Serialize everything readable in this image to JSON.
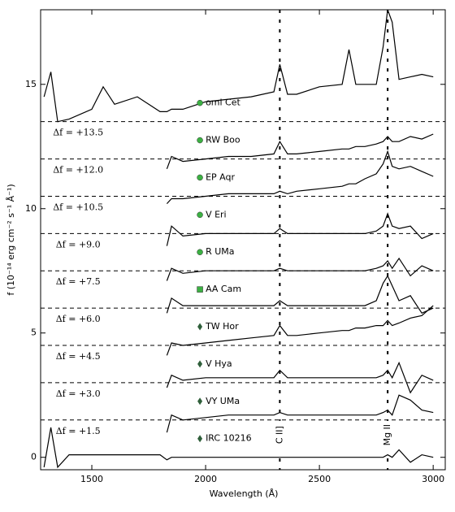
{
  "chart_data": {
    "type": "line",
    "xlabel": "Wavelength (Å)",
    "ylabel": "f (10⁻¹⁴ erg cm⁻² s⁻¹ Å⁻¹)",
    "xlim": [
      1275,
      3053
    ],
    "ylim": [
      -0.5,
      18.0
    ],
    "xticks": [
      1500,
      2000,
      2500,
      3000
    ],
    "yticks": [
      0,
      5,
      10,
      15
    ],
    "line_color": "#000000",
    "x": [
      1290,
      1320,
      1350,
      1400,
      1500,
      1550,
      1600,
      1700,
      1800,
      1830,
      1850,
      1900,
      2000,
      2100,
      2200,
      2300,
      2326,
      2360,
      2400,
      2500,
      2600,
      2630,
      2660,
      2700,
      2750,
      2780,
      2800,
      2820,
      2850,
      2900,
      2950,
      3000
    ],
    "annotations": [
      {
        "text": "C II]",
        "x": 2326
      },
      {
        "text": "Mg II",
        "x": 2800
      }
    ],
    "series": [
      {
        "name": "omi Cet",
        "marker": "circle",
        "color": "#3cb043",
        "offset": {
          "value": 13.5,
          "label": "Δf = +13.5"
        },
        "values": [
          14.5,
          15.5,
          13.5,
          13.6,
          14.0,
          14.9,
          14.2,
          14.5,
          13.9,
          13.9,
          14.0,
          14.0,
          14.3,
          14.4,
          14.5,
          14.7,
          15.8,
          14.6,
          14.6,
          14.9,
          15.0,
          16.4,
          15.0,
          15.0,
          15.0,
          16.5,
          18.0,
          17.5,
          15.2,
          15.3,
          15.4,
          15.3
        ]
      },
      {
        "name": "RW Boo",
        "marker": "circle",
        "color": "#3cb043",
        "offset": {
          "value": 12.0,
          "label": "Δf = +12.0"
        },
        "values": [
          null,
          null,
          null,
          null,
          null,
          null,
          null,
          null,
          null,
          11.6,
          12.1,
          11.9,
          12.0,
          12.1,
          12.1,
          12.2,
          12.7,
          12.2,
          12.2,
          12.3,
          12.4,
          12.4,
          12.5,
          12.5,
          12.6,
          12.7,
          12.9,
          12.7,
          12.7,
          12.9,
          12.8,
          13.0
        ]
      },
      {
        "name": "EP Aqr",
        "marker": "circle",
        "color": "#3cb043",
        "offset": {
          "value": 10.5,
          "label": "Δf = +10.5"
        },
        "values": [
          null,
          null,
          null,
          null,
          null,
          null,
          null,
          null,
          null,
          10.2,
          10.4,
          10.4,
          10.5,
          10.6,
          10.6,
          10.6,
          10.7,
          10.6,
          10.7,
          10.8,
          10.9,
          11.0,
          11.0,
          11.2,
          11.4,
          11.8,
          12.3,
          11.7,
          11.6,
          11.7,
          11.5,
          11.3
        ]
      },
      {
        "name": "V Eri",
        "marker": "circle",
        "color": "#3cb043",
        "offset": {
          "value": 9.0,
          "label": "Δf = +9.0"
        },
        "values": [
          null,
          null,
          null,
          null,
          null,
          null,
          null,
          null,
          null,
          8.5,
          9.3,
          8.9,
          9.0,
          9.0,
          9.0,
          9.0,
          9.2,
          9.0,
          9.0,
          9.0,
          9.0,
          9.0,
          9.0,
          9.0,
          9.1,
          9.3,
          9.8,
          9.3,
          9.2,
          9.3,
          8.8,
          9.0
        ]
      },
      {
        "name": "R UMa",
        "marker": "circle",
        "color": "#3cb043",
        "offset": {
          "value": 7.5,
          "label": "Δf = +7.5"
        },
        "values": [
          null,
          null,
          null,
          null,
          null,
          null,
          null,
          null,
          null,
          7.1,
          7.6,
          7.4,
          7.5,
          7.5,
          7.5,
          7.5,
          7.6,
          7.5,
          7.5,
          7.5,
          7.5,
          7.5,
          7.5,
          7.5,
          7.6,
          7.7,
          7.9,
          7.6,
          8.0,
          7.3,
          7.7,
          7.5
        ]
      },
      {
        "name": "AA Cam",
        "marker": "square",
        "color": "#3cb043",
        "offset": {
          "value": 6.0,
          "label": "Δf = +6.0"
        },
        "values": [
          null,
          null,
          null,
          null,
          null,
          null,
          null,
          null,
          null,
          5.8,
          6.4,
          6.1,
          6.1,
          6.1,
          6.1,
          6.1,
          6.3,
          6.1,
          6.1,
          6.1,
          6.1,
          6.1,
          6.1,
          6.1,
          6.3,
          7.0,
          7.3,
          6.9,
          6.3,
          6.5,
          5.8,
          6.0
        ]
      },
      {
        "name": "TW Hor",
        "marker": "diamond",
        "color": "#2f5f3a",
        "offset": {
          "value": 4.5,
          "label": "Δf = +4.5"
        },
        "values": [
          null,
          null,
          null,
          null,
          null,
          null,
          null,
          null,
          null,
          4.1,
          4.6,
          4.5,
          4.6,
          4.7,
          4.8,
          4.9,
          5.3,
          4.9,
          4.9,
          5.0,
          5.1,
          5.1,
          5.2,
          5.2,
          5.3,
          5.3,
          5.5,
          5.3,
          5.4,
          5.6,
          5.7,
          6.1
        ]
      },
      {
        "name": "V Hya",
        "marker": "diamond",
        "color": "#2f5f3a",
        "offset": {
          "value": 3.0,
          "label": "Δf = +3.0"
        },
        "values": [
          null,
          null,
          null,
          null,
          null,
          null,
          null,
          null,
          null,
          2.8,
          3.3,
          3.1,
          3.2,
          3.2,
          3.2,
          3.2,
          3.5,
          3.2,
          3.2,
          3.2,
          3.2,
          3.2,
          3.2,
          3.2,
          3.2,
          3.3,
          3.5,
          3.2,
          3.8,
          2.6,
          3.3,
          3.1
        ]
      },
      {
        "name": "VY UMa",
        "marker": "diamond",
        "color": "#2f5f3a",
        "offset": {
          "value": 1.5,
          "label": "Δf = +1.5"
        },
        "values": [
          null,
          null,
          null,
          null,
          null,
          null,
          null,
          null,
          null,
          1.0,
          1.7,
          1.5,
          1.6,
          1.7,
          1.7,
          1.7,
          1.8,
          1.7,
          1.7,
          1.7,
          1.7,
          1.7,
          1.7,
          1.7,
          1.7,
          1.8,
          1.9,
          1.7,
          2.5,
          2.3,
          1.9,
          1.8
        ]
      },
      {
        "name": "IRC 10216",
        "marker": "diamond",
        "color": "#2f5f3a",
        "values": [
          -0.4,
          1.2,
          -0.4,
          0.1,
          0.1,
          0.1,
          0.1,
          0.1,
          0.1,
          -0.1,
          0.0,
          0.0,
          0.0,
          0.0,
          0.0,
          0.0,
          0.0,
          0.0,
          0.0,
          0.0,
          0.0,
          0.0,
          0.0,
          0.0,
          0.0,
          0.0,
          0.1,
          0.0,
          0.3,
          -0.2,
          0.1,
          0.0
        ]
      }
    ]
  }
}
